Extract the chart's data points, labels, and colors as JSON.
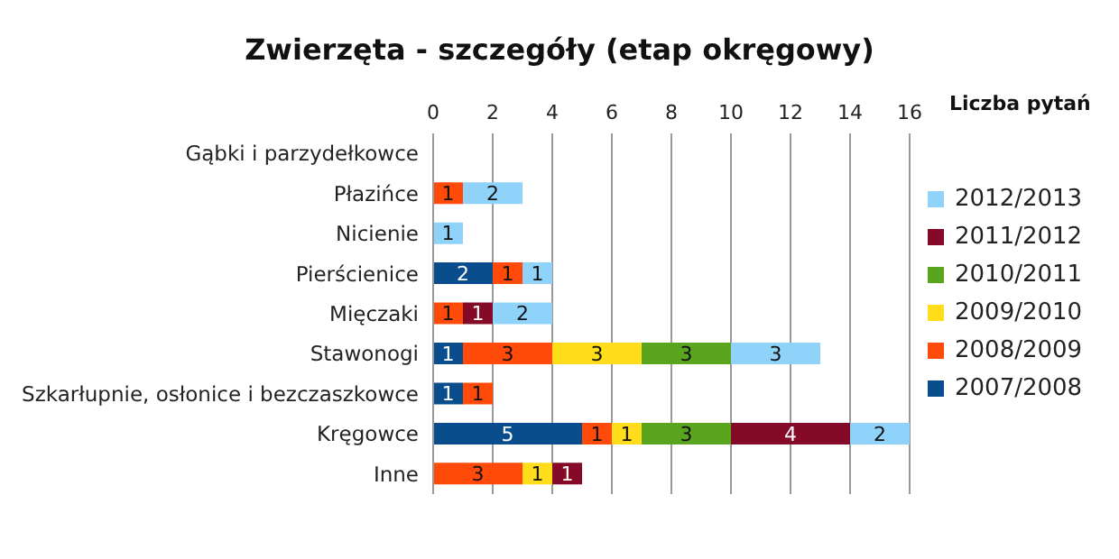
{
  "chart_data": {
    "type": "bar",
    "orientation": "horizontal",
    "stacked": true,
    "title": "Zwierzęta - szczegóły (etap okręgowy)",
    "xlabel": "Liczba pytań",
    "categories": [
      "Gąbki i parzydełkowce",
      "Płazińce",
      "Nicienie",
      "Pierścienice",
      "Mięczaki",
      "Stawonogi",
      "Szkarłupnie, osłonice i bezczaszkowce",
      "Kręgowce",
      "Inne"
    ],
    "series": [
      {
        "name": "2007/2008",
        "color": "#0a4d8c",
        "values": [
          null,
          null,
          null,
          2,
          null,
          1,
          1,
          5,
          null
        ]
      },
      {
        "name": "2008/2009",
        "color": "#ff4a0a",
        "values": [
          null,
          1,
          null,
          1,
          1,
          3,
          1,
          1,
          3
        ]
      },
      {
        "name": "2009/2010",
        "color": "#ffdd1a",
        "values": [
          null,
          null,
          null,
          null,
          null,
          3,
          null,
          1,
          1
        ]
      },
      {
        "name": "2010/2011",
        "color": "#5aa51e",
        "values": [
          null,
          null,
          null,
          null,
          null,
          3,
          null,
          3,
          null
        ]
      },
      {
        "name": "2011/2012",
        "color": "#850a28",
        "values": [
          null,
          null,
          null,
          null,
          1,
          null,
          null,
          4,
          1
        ]
      },
      {
        "name": "2012/2013",
        "color": "#8fd3fb",
        "values": [
          null,
          2,
          1,
          1,
          2,
          3,
          null,
          2,
          null
        ]
      }
    ],
    "xlim": [
      0,
      16
    ],
    "xticks": [
      0,
      2,
      4,
      6,
      8,
      10,
      12,
      14,
      16
    ],
    "grid": "x",
    "legend": "right",
    "data_labels": true
  }
}
